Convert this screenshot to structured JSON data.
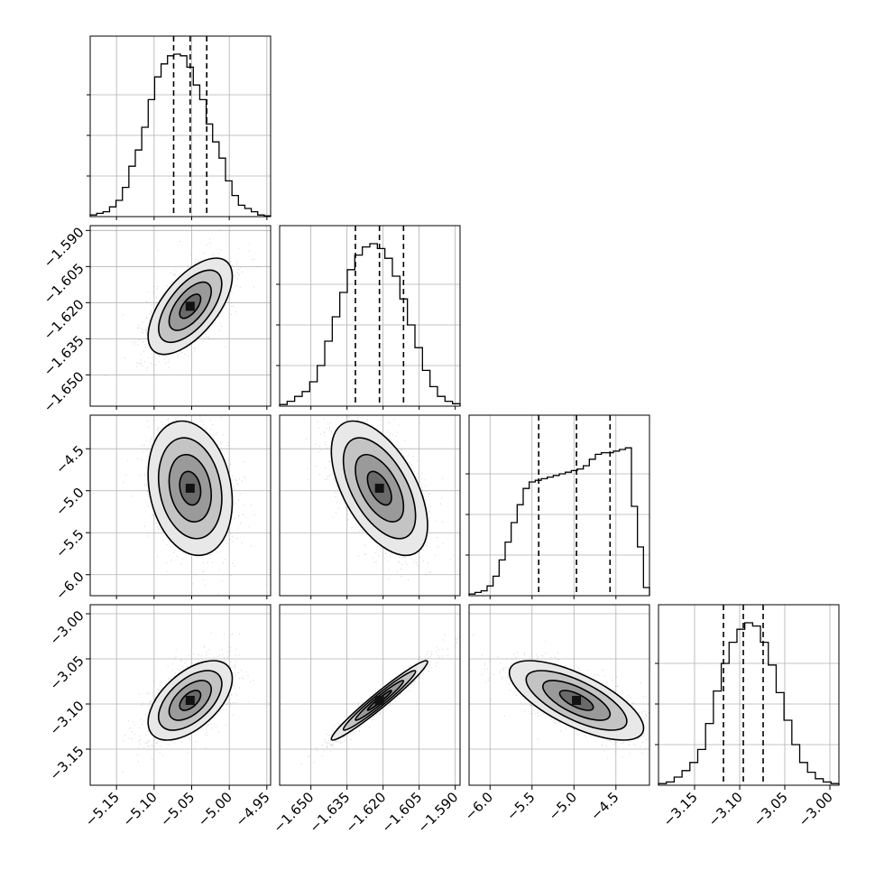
{
  "chart_data": {
    "type": "corner",
    "parameters": 4,
    "ranges": [
      [
        -5.185,
        -4.945
      ],
      [
        -1.663,
        -1.588
      ],
      [
        -6.25,
        -4.1
      ],
      [
        -3.19,
        -2.99
      ]
    ],
    "ticks": [
      [
        -5.15,
        -5.1,
        -5.05,
        -5.0,
        -4.95
      ],
      [
        -1.65,
        -1.635,
        -1.62,
        -1.605,
        -1.59
      ],
      [
        -6.0,
        -5.5,
        -5.0,
        -4.5
      ],
      [
        -3.15,
        -3.1,
        -3.05,
        -3.0
      ]
    ],
    "tick_labels": [
      [
        "−5.15",
        "−5.10",
        "−5.05",
        "−5.00",
        "−4.95"
      ],
      [
        "−1.650",
        "−1.635",
        "−1.620",
        "−1.605",
        "−1.590"
      ],
      [
        "−6.0",
        "−5.5",
        "−5.0",
        "−4.5"
      ],
      [
        "−3.15",
        "−3.10",
        "−3.05",
        "−3.00"
      ]
    ],
    "quantiles": [
      [
        -5.074,
        -5.052,
        -5.03
      ],
      [
        -1.6315,
        -1.6215,
        -1.6115
      ],
      [
        -5.42,
        -4.97,
        -4.57
      ],
      [
        -3.118,
        -3.096,
        -3.074
      ]
    ],
    "histograms": [
      [
        1,
        2,
        3,
        6,
        10,
        18,
        31,
        41,
        55,
        72,
        86,
        94,
        99,
        100,
        99,
        92,
        81,
        72,
        57,
        46,
        36,
        22,
        13,
        7,
        5,
        3,
        1,
        0.5
      ],
      [
        1,
        3,
        6,
        9,
        15,
        25,
        40,
        55,
        70,
        84,
        93,
        98,
        100,
        97,
        91,
        80,
        66,
        50,
        36,
        22,
        12,
        6,
        3,
        1.5
      ],
      [
        1,
        2,
        3,
        6,
        12,
        22,
        33,
        45,
        56,
        66,
        70,
        71,
        72,
        73,
        74,
        75,
        76,
        77,
        78,
        80,
        84,
        87,
        88,
        88,
        89,
        90,
        91,
        55,
        30,
        5
      ],
      [
        1,
        2,
        5,
        9,
        14,
        22,
        38,
        58,
        75,
        88,
        96,
        100,
        98,
        88,
        74,
        57,
        40,
        25,
        14,
        8,
        4,
        2,
        1
      ]
    ],
    "pairs": [
      {
        "x": 0,
        "y": 1,
        "mean": [
          -5.052,
          -1.6215
        ],
        "sd": [
          0.028,
          0.01
        ],
        "rho": 0.62
      },
      {
        "x": 0,
        "y": 2,
        "mean": [
          -5.052,
          -4.97
        ],
        "sd": [
          0.028,
          0.4
        ],
        "rho": -0.2
      },
      {
        "x": 1,
        "y": 2,
        "mean": [
          -1.6215,
          -4.97
        ],
        "sd": [
          0.01,
          0.4
        ],
        "rho": -0.55
      },
      {
        "x": 0,
        "y": 3,
        "mean": [
          -5.052,
          -3.096
        ],
        "sd": [
          0.028,
          0.022
        ],
        "rho": 0.55
      },
      {
        "x": 1,
        "y": 3,
        "mean": [
          -1.6215,
          -3.096
        ],
        "sd": [
          0.01,
          0.022
        ],
        "rho": 0.97
      },
      {
        "x": 2,
        "y": 3,
        "mean": [
          -4.97,
          -3.096
        ],
        "sd": [
          0.4,
          0.022
        ],
        "rho": -0.7
      }
    ],
    "contour_levels_sigma": [
      0.5,
      1.0,
      1.5,
      2.0
    ],
    "grid": true
  }
}
